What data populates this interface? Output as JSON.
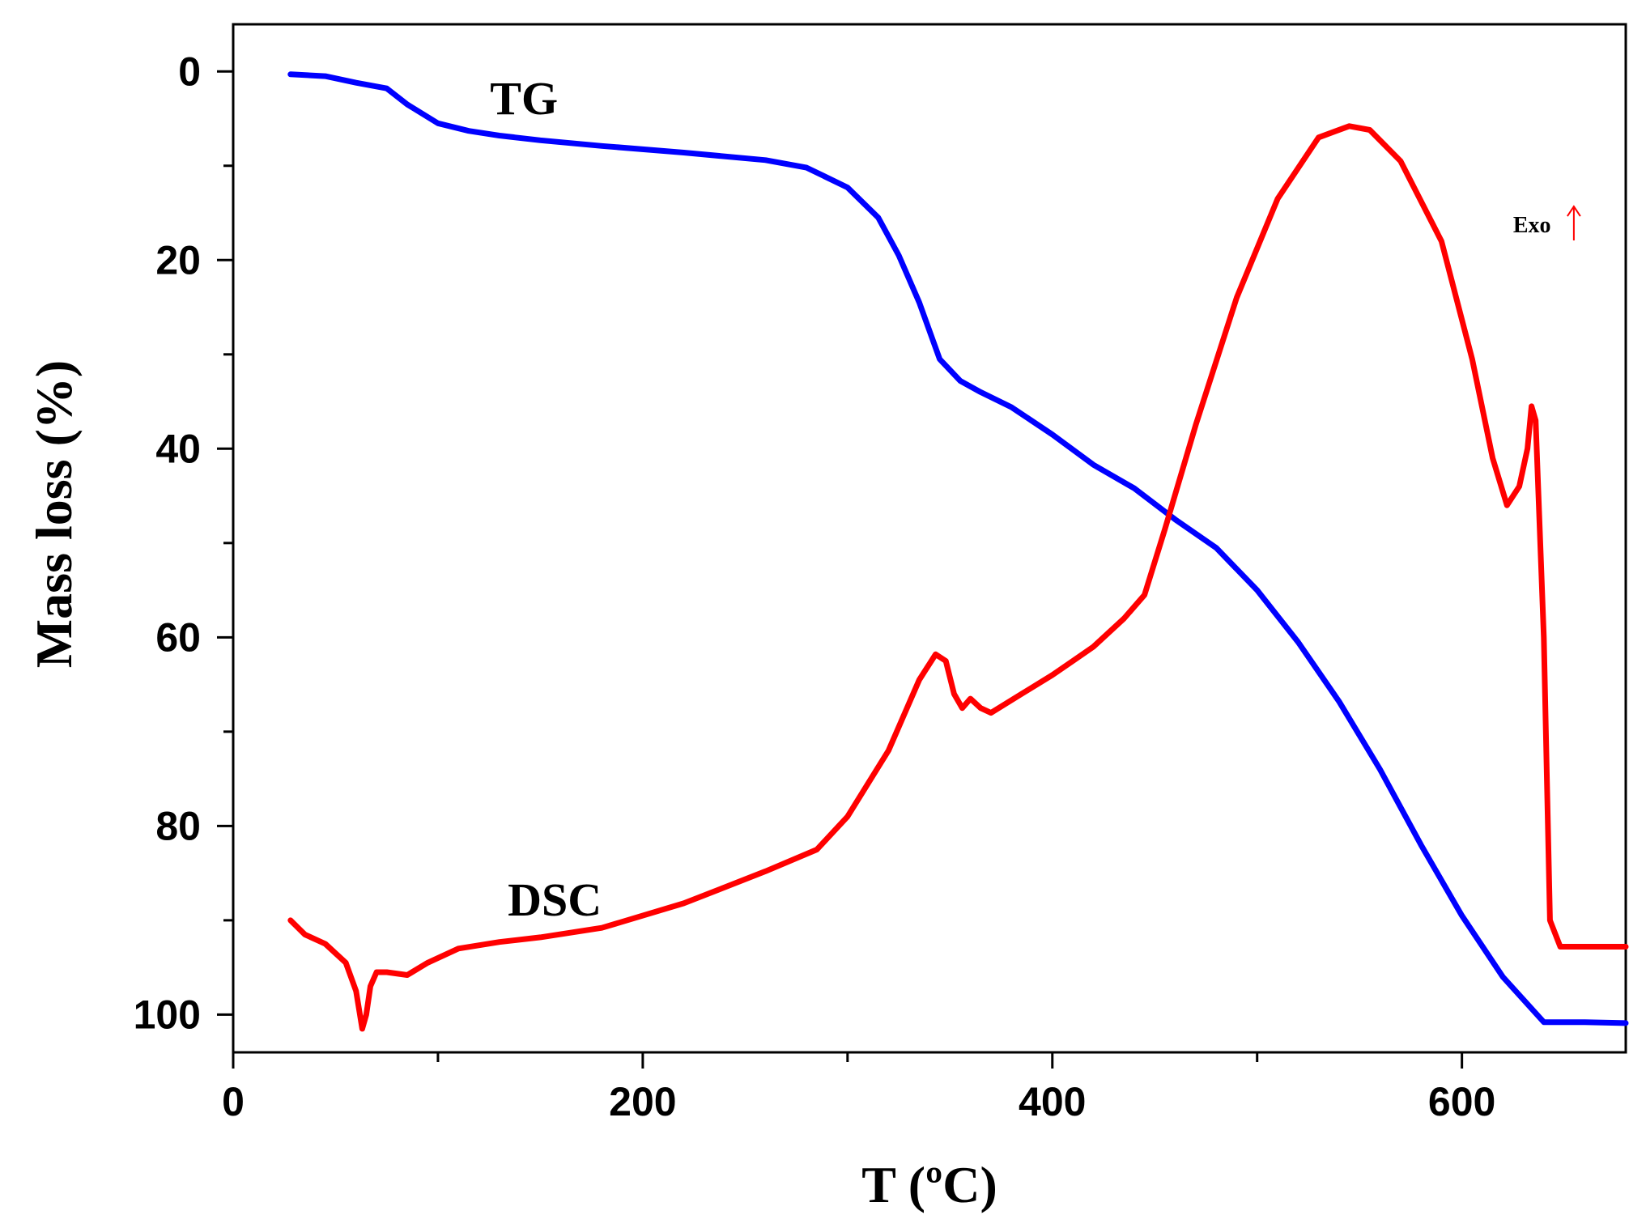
{
  "chart_data": {
    "type": "line",
    "title": "",
    "xlabel": "T (ºC)",
    "ylabel": "Mass loss (%)",
    "xlim": [
      0,
      680
    ],
    "ylim": [
      -5,
      104
    ],
    "y_inverted": true,
    "x_ticks": [
      0,
      200,
      400,
      600
    ],
    "x_minor_ticks": [
      100,
      300,
      500
    ],
    "y_ticks": [
      0,
      20,
      40,
      60,
      80,
      100
    ],
    "y_minor_ticks": [
      10,
      30,
      50,
      70,
      90
    ],
    "series": [
      {
        "name": "TG",
        "color": "#0000ff",
        "x": [
          28,
          45,
          60,
          75,
          85,
          100,
          115,
          130,
          150,
          180,
          220,
          260,
          280,
          300,
          315,
          325,
          335,
          345,
          355,
          365,
          380,
          400,
          420,
          440,
          460,
          480,
          500,
          520,
          540,
          560,
          580,
          600,
          620,
          640,
          660,
          680
        ],
        "y": [
          0.3,
          0.5,
          1.2,
          1.8,
          3.5,
          5.5,
          6.3,
          6.8,
          7.3,
          7.9,
          8.6,
          9.4,
          10.2,
          12.3,
          15.5,
          19.5,
          24.5,
          30.5,
          32.8,
          34.0,
          35.6,
          38.5,
          41.7,
          44.2,
          47.5,
          50.5,
          55.0,
          60.5,
          66.8,
          74.0,
          82.0,
          89.5,
          96.0,
          100.8,
          100.8,
          100.9
        ]
      },
      {
        "name": "DSC",
        "color": "#ff0000",
        "x": [
          28,
          35,
          45,
          55,
          60,
          63,
          65,
          67,
          70,
          75,
          85,
          95,
          110,
          130,
          150,
          180,
          220,
          260,
          285,
          300,
          320,
          335,
          343,
          348,
          352,
          356,
          360,
          365,
          370,
          385,
          400,
          410,
          420,
          435,
          445,
          455,
          470,
          490,
          510,
          530,
          545,
          555,
          570,
          590,
          605,
          615,
          622,
          628,
          632,
          634,
          636,
          640,
          643,
          648,
          660,
          680
        ],
        "y": [
          90.0,
          91.5,
          92.5,
          94.5,
          97.5,
          101.5,
          100.0,
          97.0,
          95.5,
          95.5,
          95.8,
          94.5,
          93.0,
          92.3,
          91.8,
          90.8,
          88.2,
          84.8,
          82.5,
          79.0,
          72.0,
          64.5,
          61.8,
          62.5,
          66.0,
          67.5,
          66.5,
          67.5,
          68.0,
          66.0,
          64.0,
          62.5,
          61.0,
          58.0,
          55.5,
          48.5,
          37.5,
          24.0,
          13.5,
          7.0,
          5.8,
          6.2,
          9.5,
          18.0,
          30.5,
          41.0,
          46.0,
          44.0,
          40.0,
          35.5,
          37.0,
          60.0,
          90.0,
          92.8,
          92.8,
          92.8
        ]
      }
    ],
    "annotations": [
      {
        "text": "TG",
        "x": 142,
        "y": 2.8
      },
      {
        "text": "DSC",
        "x": 157,
        "y": 87.8
      },
      {
        "text": "Exo",
        "x": 625,
        "y": 16.2
      }
    ]
  }
}
